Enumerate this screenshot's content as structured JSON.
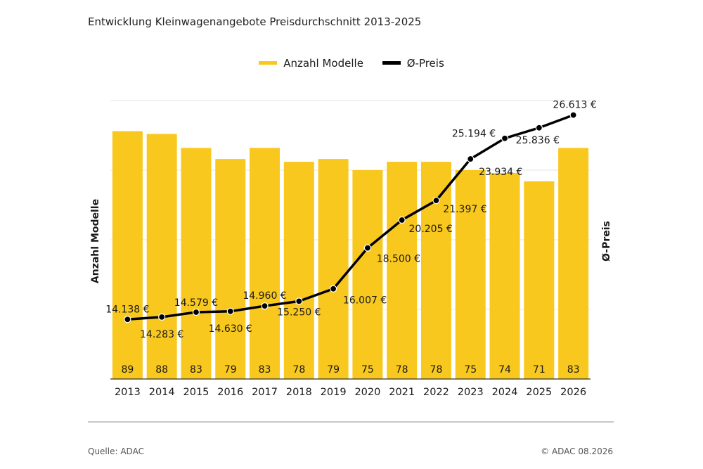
{
  "title": "Entwicklung Kleinwagenangebote Preisdurchschnitt 2013-2025",
  "legend": {
    "bars_label": "Anzahl Modelle",
    "line_label": "Ø-Preis"
  },
  "colors": {
    "bar": "#F9C81E",
    "line": "#000000",
    "grid": "#e6e6e6"
  },
  "footer": {
    "source": "Quelle: ADAC",
    "copyright": "© ADAC 08.2026"
  },
  "chart_data": {
    "type": "bar",
    "categories": [
      "2013",
      "2014",
      "2015",
      "2016",
      "2017",
      "2018",
      "2019",
      "2020",
      "2021",
      "2022",
      "2023",
      "2024",
      "2025",
      "2026"
    ],
    "series": [
      {
        "name": "Anzahl Modelle",
        "type": "bar",
        "values": [
          89,
          88,
          83,
          79,
          83,
          78,
          79,
          75,
          78,
          78,
          75,
          74,
          71,
          83
        ]
      },
      {
        "name": "Ø-Preis",
        "type": "line",
        "values": [
          14138,
          14283,
          14579,
          14630,
          14960,
          15250,
          16007,
          18500,
          20205,
          21397,
          23934,
          25194,
          25836,
          26613
        ],
        "labels": [
          "14.138 €",
          "14.283 €",
          "14.579 €",
          "14.630 €",
          "14.960 €",
          "15.250 €",
          "16.007 €",
          "18.500 €",
          "20.205 €",
          "21.397 €",
          "23.934 €",
          "25.194 €",
          "25.836 €",
          "26.613 €"
        ]
      }
    ],
    "ylabel_left": "Anzahl Modelle",
    "ylabel_right": "Ø-Preis",
    "ylim_left": [
      0,
      100
    ],
    "ylim_right": [
      10500,
      27500
    ],
    "grid": true
  }
}
